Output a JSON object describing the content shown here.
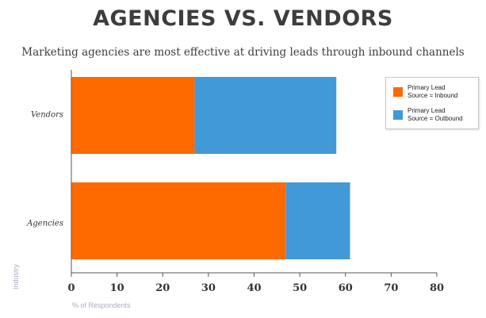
{
  "chart_data": {
    "type": "bar",
    "orientation": "horizontal",
    "stacked": true,
    "title": "AGENCIES VS. VENDORS",
    "subtitle": "Marketing agencies are most effective at driving leads through inbound channels",
    "categories": [
      "Vendors",
      "Agencies"
    ],
    "series": [
      {
        "name": "Primary Lead Source = Inbound",
        "values": [
          27,
          47
        ],
        "color": "#ff6a00"
      },
      {
        "name": "Primary Lead Source = Outbound",
        "values": [
          31,
          14
        ],
        "color": "#4199d8"
      }
    ],
    "xlabel": "% of Respondents",
    "ylabel": "Industry",
    "xlim": [
      0,
      80
    ],
    "xticks": [
      "0",
      "10",
      "20",
      "30",
      "40",
      "50",
      "60",
      "70",
      "80"
    ],
    "legend_position": "top-right",
    "legend_labels": [
      [
        "Primary Lead",
        "Source = Inbound"
      ],
      [
        "Primary Lead",
        "Source = Outbound"
      ]
    ]
  }
}
